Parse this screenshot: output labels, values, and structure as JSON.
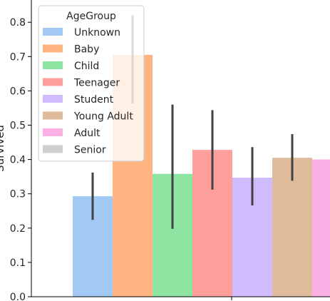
{
  "chart_data": {
    "type": "bar",
    "xlabel": "",
    "ylabel": "Survived",
    "ylim": [
      0,
      0.85
    ],
    "yticks": [
      "0.0",
      "0.1",
      "0.2",
      "0.3",
      "0.4",
      "0.5",
      "0.6",
      "0.7",
      "0.8"
    ],
    "categories": [
      "Unknown",
      "Baby",
      "Child",
      "Teenager",
      "Student",
      "Young Adult",
      "Adult",
      "Senior"
    ],
    "values": [
      0.293,
      0.705,
      0.358,
      0.428,
      0.347,
      0.405,
      0.4,
      null
    ],
    "error_low": [
      0.224,
      0.563,
      0.198,
      0.312,
      0.266,
      0.338,
      null,
      null
    ],
    "error_high": [
      0.362,
      0.82,
      0.56,
      0.544,
      0.436,
      0.474,
      null,
      null
    ],
    "legend": {
      "title": "AgeGroup",
      "placement": "upper-left",
      "entries": [
        "Unknown",
        "Baby",
        "Child",
        "Teenager",
        "Student",
        "Young Adult",
        "Adult",
        "Senior"
      ]
    },
    "colors": [
      "#a1c9f4",
      "#ffb482",
      "#8de5a1",
      "#ff9f9b",
      "#d0bbff",
      "#debb9b",
      "#fab0e4",
      "#cfcfcf"
    ],
    "error_color": "#424242",
    "grid": false
  }
}
